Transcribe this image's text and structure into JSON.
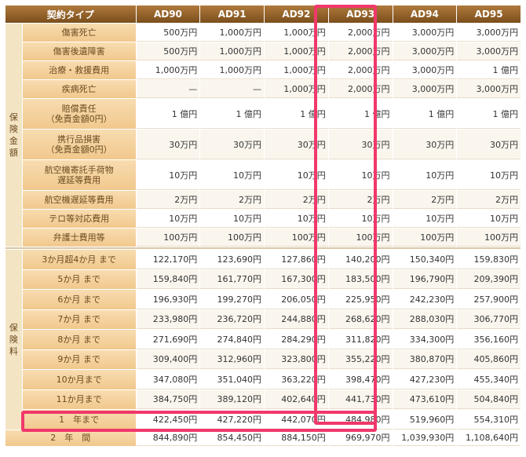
{
  "header": {
    "type_label": "契約タイプ",
    "columns": [
      "AD90",
      "AD91",
      "AD92",
      "AD93",
      "AD94",
      "AD95"
    ]
  },
  "sections": {
    "coverage": "保険金額",
    "premium": "保険料"
  },
  "coverage_rows": [
    {
      "label": "傷害死亡",
      "values": [
        "500万円",
        "1,000万円",
        "1,000万円",
        "2,000万円",
        "3,000万円",
        "3,000万円"
      ]
    },
    {
      "label": "傷害後遺障害",
      "values": [
        "500万円",
        "1,000万円",
        "1,000万円",
        "2,000万円",
        "3,000万円",
        "3,000万円"
      ]
    },
    {
      "label": "治療・救援費用",
      "values": [
        "1,000万円",
        "1,000万円",
        "1,000万円",
        "2,000万円",
        "3,000万円",
        "1 億円"
      ]
    },
    {
      "label": "疾病死亡",
      "values": [
        "—",
        "—",
        "1,000万円",
        "2,000万円",
        "3,000万円",
        "3,000万円"
      ]
    },
    {
      "label": "賠償責任\n（免責金額0円）",
      "values": [
        "1 億円",
        "1 億円",
        "1 億円",
        "1 億円",
        "1 億円",
        "1 億円"
      ]
    },
    {
      "label": "携行品損害\n（免責金額0円）",
      "values": [
        "30万円",
        "30万円",
        "30万円",
        "30万円",
        "30万円",
        "30万円"
      ]
    },
    {
      "label": "航空機寄託手荷物\n遅延等費用",
      "values": [
        "10万円",
        "10万円",
        "10万円",
        "10万円",
        "10万円",
        "10万円"
      ]
    },
    {
      "label": "航空機遅延等費用",
      "values": [
        "2万円",
        "2万円",
        "2万円",
        "2万円",
        "2万円",
        "2万円"
      ]
    },
    {
      "label": "テロ等対応費用",
      "values": [
        "10万円",
        "10万円",
        "10万円",
        "10万円",
        "10万円",
        "10万円"
      ]
    },
    {
      "label": "弁護士費用等",
      "values": [
        "100万円",
        "100万円",
        "100万円",
        "100万円",
        "100万円",
        "100万円"
      ]
    }
  ],
  "premium_rows": [
    {
      "label": "3か月超4か月 まで",
      "values": [
        "122,170円",
        "123,690円",
        "127,860円",
        "140,200円",
        "150,340円",
        "159,830円"
      ]
    },
    {
      "label": "5か月 まで",
      "values": [
        "159,840円",
        "161,770円",
        "167,300円",
        "183,500円",
        "196,790円",
        "209,390円"
      ]
    },
    {
      "label": "6か月 まで",
      "values": [
        "196,930円",
        "199,270円",
        "206,050円",
        "225,950円",
        "242,230円",
        "257,900円"
      ]
    },
    {
      "label": "7か月 まで",
      "values": [
        "233,980円",
        "236,720円",
        "244,880円",
        "268,620円",
        "288,030円",
        "306,770円"
      ]
    },
    {
      "label": "8か月 まで",
      "values": [
        "271,690円",
        "274,840円",
        "284,290円",
        "311,820円",
        "334,300円",
        "356,160円"
      ]
    },
    {
      "label": "9か月 まで",
      "values": [
        "309,400円",
        "312,960円",
        "323,800円",
        "355,220円",
        "380,870円",
        "405,860円"
      ]
    },
    {
      "label": "10か月まで",
      "values": [
        "347,080円",
        "351,040円",
        "363,220円",
        "398,470円",
        "427,230円",
        "455,340円"
      ]
    },
    {
      "label": "11か月まで",
      "values": [
        "384,750円",
        "389,120円",
        "402,640円",
        "441,730円",
        "473,610円",
        "504,840円"
      ]
    },
    {
      "label": "1　年まで",
      "values": [
        "422,450円",
        "427,220円",
        "442,070円",
        "484,980円",
        "519,960円",
        "554,310円"
      ]
    }
  ],
  "extra_row": {
    "label": "2　年　間",
    "values": [
      "844,890円",
      "854,450円",
      "884,150円",
      "969,970円",
      "1,039,930円",
      "1,108,640円"
    ]
  },
  "colors": {
    "highlight": "#f0386b",
    "header": "#8b5a24",
    "label_bg": "#f3cf9b"
  }
}
